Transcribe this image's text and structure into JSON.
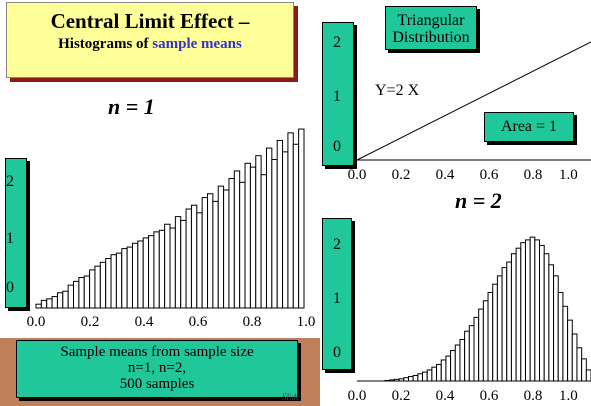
{
  "title": {
    "line1": "Central Limit Effect –",
    "line2_prefix": "Histograms of ",
    "line2_highlight": "sample means"
  },
  "colors": {
    "title_bg": "#ffff99",
    "tag_bg": "#1fc79a",
    "highlight": "#3333cc",
    "band": "#c0805a"
  },
  "panel_n1": {
    "label": "n = 1",
    "yticks": [
      "2",
      "1",
      "0"
    ],
    "xticks": [
      "0.0",
      "0.2",
      "0.4",
      "0.6",
      "0.8",
      "1.0"
    ]
  },
  "panel_tri": {
    "tag": "Triangular Distribution",
    "equation": "Y=2 X",
    "area": "Area = 1",
    "yticks": [
      "2",
      "1",
      "0"
    ],
    "xticks": [
      "0.0",
      "0.2",
      "0.4",
      "0.6",
      "0.8",
      "1.0"
    ]
  },
  "panel_n2": {
    "label": "n = 2",
    "yticks": [
      "2",
      "1",
      "0"
    ],
    "xticks": [
      "0.0",
      "0.2",
      "0.4",
      "0.6",
      "0.8",
      "1.0"
    ]
  },
  "caption": {
    "line1": "Sample means from sample size",
    "line2": "n=1, n=2,",
    "line3": "500 samples"
  },
  "footer": {
    "slide": "Slide"
  },
  "chart_data": [
    {
      "type": "line",
      "tag": "Triangular Distribution",
      "x": [
        0.0,
        1.0
      ],
      "y": [
        0.0,
        2.0
      ],
      "xlim": [
        0.0,
        1.0
      ],
      "ylim": [
        0,
        2
      ]
    },
    {
      "type": "bar",
      "label": "n = 1",
      "xlim": [
        0.0,
        1.0
      ],
      "ylim": [
        0,
        2.6
      ],
      "bin_width": 0.02,
      "values": [
        0.05,
        0.1,
        0.12,
        0.15,
        0.2,
        0.22,
        0.3,
        0.35,
        0.4,
        0.42,
        0.5,
        0.55,
        0.6,
        0.65,
        0.7,
        0.72,
        0.78,
        0.8,
        0.85,
        0.88,
        0.92,
        0.95,
        1.0,
        1.02,
        1.1,
        1.05,
        1.2,
        1.15,
        1.3,
        1.35,
        1.25,
        1.45,
        1.5,
        1.4,
        1.6,
        1.55,
        1.7,
        1.8,
        1.65,
        1.9,
        1.85,
        2.0,
        1.75,
        2.1,
        1.95,
        2.2,
        2.05,
        2.3,
        2.15,
        2.35
      ]
    },
    {
      "type": "bar",
      "label": "n = 2",
      "xlim": [
        0.0,
        1.0
      ],
      "ylim": [
        0,
        3.0
      ],
      "bin_width": 0.02,
      "values": [
        0.0,
        0.0,
        0.0,
        0.0,
        0.0,
        0.0,
        0.01,
        0.02,
        0.03,
        0.04,
        0.06,
        0.08,
        0.1,
        0.13,
        0.16,
        0.2,
        0.25,
        0.3,
        0.38,
        0.45,
        0.55,
        0.65,
        0.75,
        0.9,
        1.0,
        1.15,
        1.3,
        1.45,
        1.6,
        1.75,
        1.9,
        2.05,
        2.15,
        2.3,
        2.4,
        2.5,
        2.55,
        2.6,
        2.55,
        2.45,
        2.3,
        2.1,
        1.9,
        1.6,
        1.35,
        1.1,
        0.85,
        0.6,
        0.4,
        0.2
      ]
    }
  ]
}
